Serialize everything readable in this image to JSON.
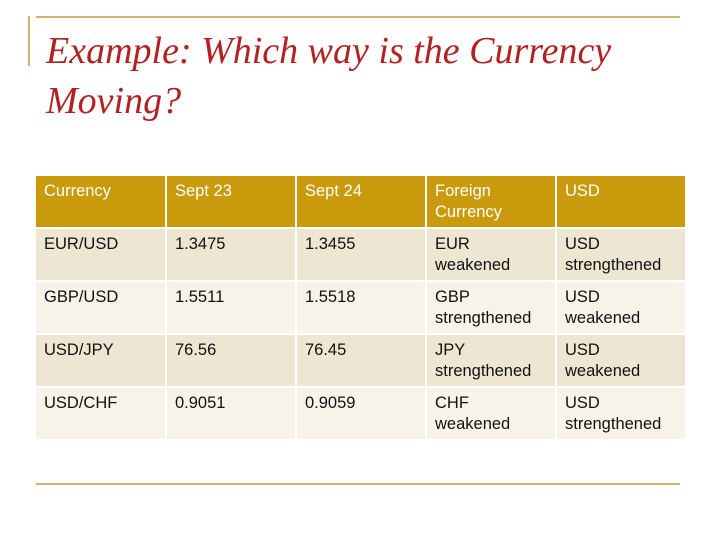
{
  "slide": {
    "title": "Example: Which way is the Currency Moving?"
  },
  "table": {
    "headers": [
      "Currency",
      "Sept 23",
      "Sept 24",
      "Foreign Currency",
      "USD"
    ],
    "rows": [
      [
        "EUR/USD",
        "1.3475",
        "1.3455",
        "EUR weakened",
        "USD strengthened"
      ],
      [
        "GBP/USD",
        "1.5511",
        "1.5518",
        "GBP strengthened",
        "USD weakened"
      ],
      [
        "USD/JPY",
        "76.56",
        "76.45",
        "JPY strengthened",
        "USD weakened"
      ],
      [
        "USD/CHF",
        "0.9051",
        "0.9059",
        "CHF weakened",
        "USD strengthened"
      ]
    ]
  },
  "colors": {
    "title": "#b22222",
    "header_background": "#c99a0c",
    "header_text": "#ffffff",
    "row_background_dark": "#ede6d3",
    "row_background_light": "#f7f3e8",
    "rule": "#d1b468"
  }
}
